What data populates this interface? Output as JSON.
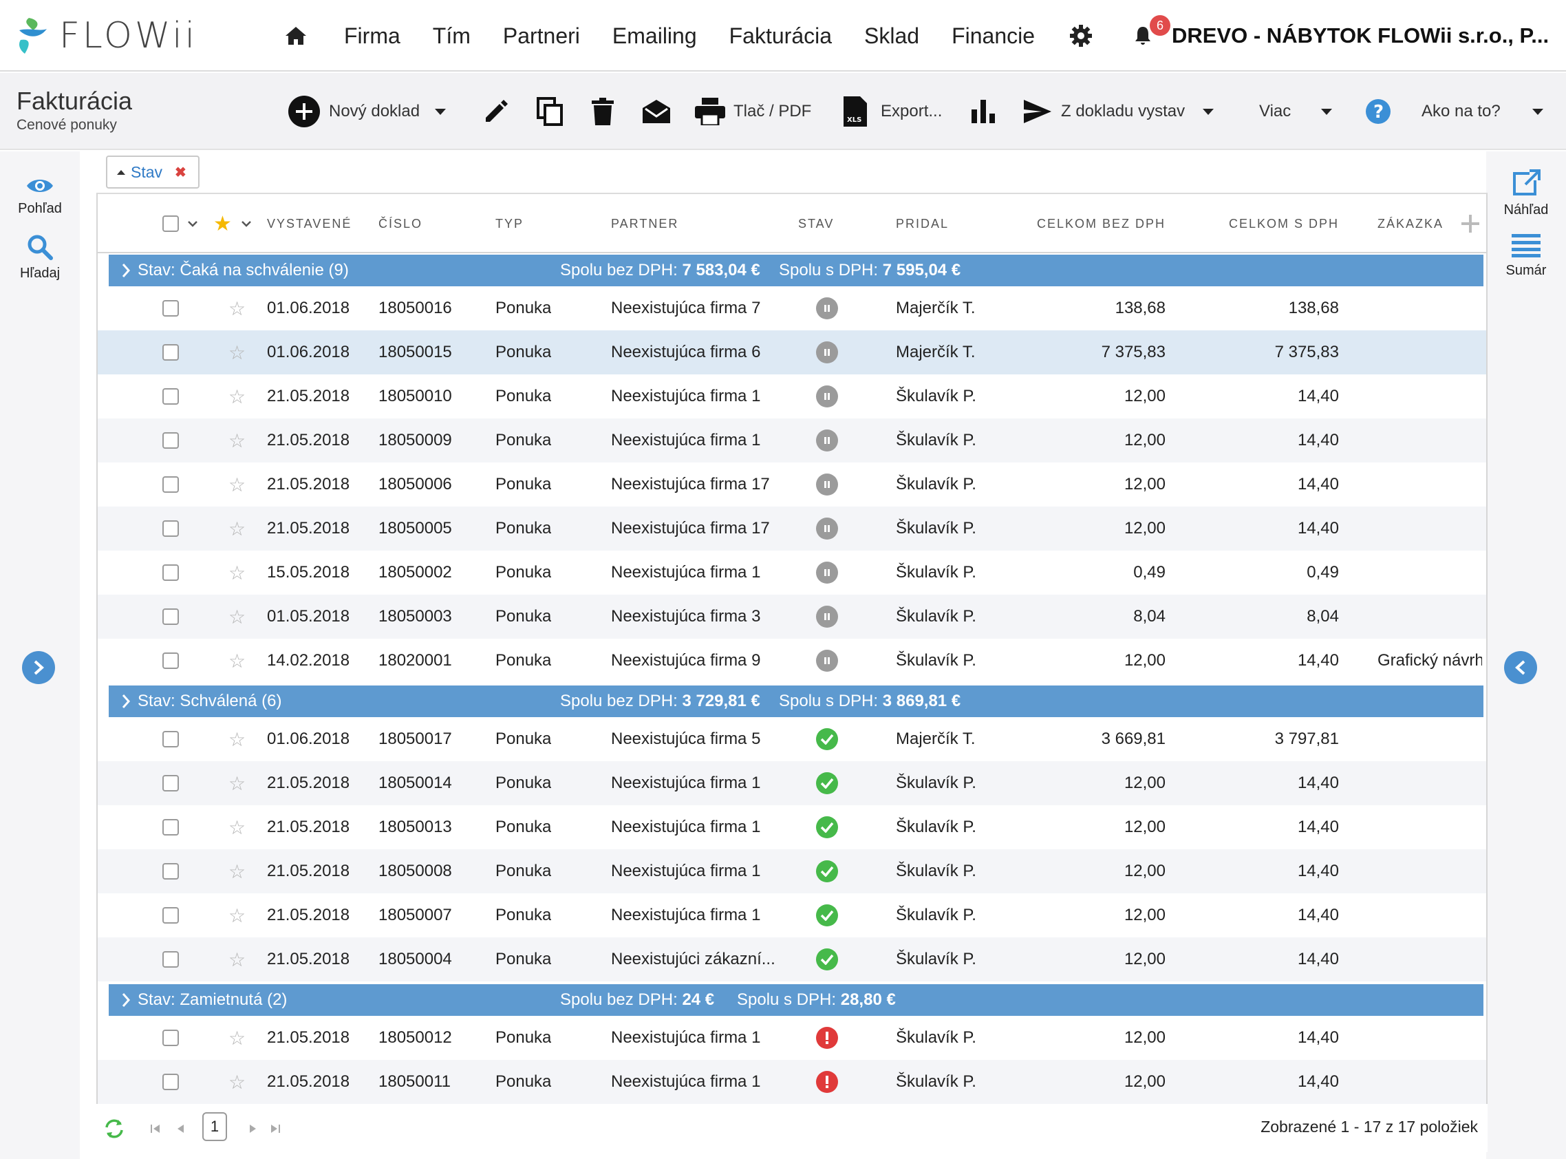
{
  "app": {
    "logo_text": "FLOWii"
  },
  "nav": {
    "items": [
      "Firma",
      "Tím",
      "Partneri",
      "Emailing",
      "Fakturácia",
      "Sklad",
      "Financie"
    ],
    "notifications_count": "6",
    "company": "DREVO - NÁBYTOK FLOWii s.r.o., P..."
  },
  "toolbar": {
    "title": "Fakturácia",
    "subtitle": "Cenové ponuky",
    "new_doc": "Nový doklad",
    "print": "Tlač / PDF",
    "export": "Export...",
    "from_doc": "Z dokladu vystav",
    "more": "Viac",
    "help": "Ako na to?"
  },
  "left_panel": {
    "view": "Pohľad",
    "search": "Hľadaj"
  },
  "right_panel": {
    "preview": "Náhľad",
    "summary": "Sumár"
  },
  "filter": {
    "label": "Stav"
  },
  "columns": {
    "issued": "VYSTAVENÉ",
    "number": "ČÍSLO",
    "type": "TYP",
    "partner": "PARTNER",
    "status": "STAV",
    "added_by": "PRIDAL",
    "total_no_vat": "CELKOM BEZ DPH",
    "total_vat": "CELKOM S DPH",
    "order": "ZÁKAZKA"
  },
  "groups": [
    {
      "title": "Stav: Čaká na schválenie (9)",
      "sum_no_vat_label": "Spolu bez DPH:",
      "sum_no_vat": "7 583,04 €",
      "sum_vat_label": "Spolu s DPH:",
      "sum_vat": "7 595,04 €",
      "status": "waiting",
      "rows": [
        {
          "date": "01.06.2018",
          "number": "18050016",
          "type": "Ponuka",
          "partner": "Neexistujúca firma 7",
          "added_by": "Majerčík T.",
          "no_vat": "138,68",
          "vat": "138,68",
          "order": ""
        },
        {
          "date": "01.06.2018",
          "number": "18050015",
          "type": "Ponuka",
          "partner": "Neexistujúca firma 6",
          "added_by": "Majerčík T.",
          "no_vat": "7 375,83",
          "vat": "7 375,83",
          "order": ""
        },
        {
          "date": "21.05.2018",
          "number": "18050010",
          "type": "Ponuka",
          "partner": "Neexistujúca firma 1",
          "added_by": "Škulavík P.",
          "no_vat": "12,00",
          "vat": "14,40",
          "order": ""
        },
        {
          "date": "21.05.2018",
          "number": "18050009",
          "type": "Ponuka",
          "partner": "Neexistujúca firma 1",
          "added_by": "Škulavík P.",
          "no_vat": "12,00",
          "vat": "14,40",
          "order": ""
        },
        {
          "date": "21.05.2018",
          "number": "18050006",
          "type": "Ponuka",
          "partner": "Neexistujúca firma 17",
          "added_by": "Škulavík P.",
          "no_vat": "12,00",
          "vat": "14,40",
          "order": ""
        },
        {
          "date": "21.05.2018",
          "number": "18050005",
          "type": "Ponuka",
          "partner": "Neexistujúca firma 17",
          "added_by": "Škulavík P.",
          "no_vat": "12,00",
          "vat": "14,40",
          "order": ""
        },
        {
          "date": "15.05.2018",
          "number": "18050002",
          "type": "Ponuka",
          "partner": "Neexistujúca firma 1",
          "added_by": "Škulavík P.",
          "no_vat": "0,49",
          "vat": "0,49",
          "order": ""
        },
        {
          "date": "01.05.2018",
          "number": "18050003",
          "type": "Ponuka",
          "partner": "Neexistujúca firma 3",
          "added_by": "Škulavík P.",
          "no_vat": "8,04",
          "vat": "8,04",
          "order": ""
        },
        {
          "date": "14.02.2018",
          "number": "18020001",
          "type": "Ponuka",
          "partner": "Neexistujúca firma 9",
          "added_by": "Škulavík P.",
          "no_vat": "12,00",
          "vat": "14,40",
          "order": "Grafický návrh"
        }
      ]
    },
    {
      "title": "Stav: Schválená (6)",
      "sum_no_vat_label": "Spolu bez DPH:",
      "sum_no_vat": "3 729,81 €",
      "sum_vat_label": "Spolu s DPH:",
      "sum_vat": "3 869,81 €",
      "status": "approved",
      "rows": [
        {
          "date": "01.06.2018",
          "number": "18050017",
          "type": "Ponuka",
          "partner": "Neexistujúca firma 5",
          "added_by": "Majerčík T.",
          "no_vat": "3 669,81",
          "vat": "3 797,81",
          "order": ""
        },
        {
          "date": "21.05.2018",
          "number": "18050014",
          "type": "Ponuka",
          "partner": "Neexistujúca firma 1",
          "added_by": "Škulavík P.",
          "no_vat": "12,00",
          "vat": "14,40",
          "order": ""
        },
        {
          "date": "21.05.2018",
          "number": "18050013",
          "type": "Ponuka",
          "partner": "Neexistujúca firma 1",
          "added_by": "Škulavík P.",
          "no_vat": "12,00",
          "vat": "14,40",
          "order": ""
        },
        {
          "date": "21.05.2018",
          "number": "18050008",
          "type": "Ponuka",
          "partner": "Neexistujúca firma 1",
          "added_by": "Škulavík P.",
          "no_vat": "12,00",
          "vat": "14,40",
          "order": ""
        },
        {
          "date": "21.05.2018",
          "number": "18050007",
          "type": "Ponuka",
          "partner": "Neexistujúca firma 1",
          "added_by": "Škulavík P.",
          "no_vat": "12,00",
          "vat": "14,40",
          "order": ""
        },
        {
          "date": "21.05.2018",
          "number": "18050004",
          "type": "Ponuka",
          "partner": "Neexistujúci zákazní...",
          "added_by": "Škulavík P.",
          "no_vat": "12,00",
          "vat": "14,40",
          "order": ""
        }
      ]
    },
    {
      "title": "Stav: Zamietnutá (2)",
      "sum_no_vat_label": "Spolu bez DPH:",
      "sum_no_vat": "24 €",
      "sum_vat_label": "Spolu s DPH:",
      "sum_vat": "28,80 €",
      "status": "rejected",
      "rows": [
        {
          "date": "21.05.2018",
          "number": "18050012",
          "type": "Ponuka",
          "partner": "Neexistujúca firma 1",
          "added_by": "Škulavík P.",
          "no_vat": "12,00",
          "vat": "14,40",
          "order": ""
        },
        {
          "date": "21.05.2018",
          "number": "18050011",
          "type": "Ponuka",
          "partner": "Neexistujúca firma 1",
          "added_by": "Škulavík P.",
          "no_vat": "12,00",
          "vat": "14,40",
          "order": ""
        }
      ]
    }
  ],
  "pager": {
    "page": "1",
    "info": "Zobrazené 1 - 17 z 17 položiek"
  },
  "colors": {
    "group_bar": "#5e9ad0",
    "accent": "#2f7ac6",
    "ok": "#46b94a",
    "error": "#e03a3a",
    "waiting": "#9b9b9b"
  }
}
